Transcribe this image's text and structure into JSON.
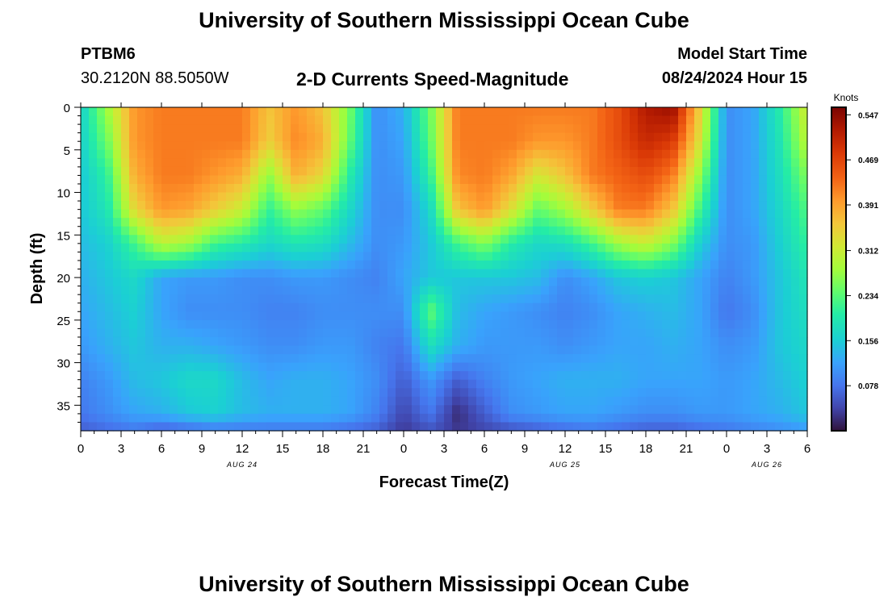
{
  "header": {
    "title": "University of Southern Mississippi Ocean Cube",
    "station_id": "PTBM6",
    "coordinates": "30.2120N  88.5050W",
    "subtitle": "2-D Currents Speed-Magnitude",
    "model_start_label": "Model Start Time",
    "model_start_value": "08/24/2024 Hour 15"
  },
  "footer": {
    "title": "University of Southern Mississippi Ocean Cube"
  },
  "chart_data": {
    "type": "heatmap",
    "title": "2-D Currents Speed-Magnitude",
    "xlabel": "Forecast Time(Z)",
    "ylabel": "Depth (ft)",
    "x_ticks": [
      "0",
      "3",
      "6",
      "9",
      "12",
      "15",
      "18",
      "21",
      "0",
      "3",
      "6",
      "9",
      "12",
      "15",
      "18",
      "21",
      "0",
      "3",
      "6"
    ],
    "x_range_hours": [
      0,
      54
    ],
    "date_labels": [
      {
        "label": "AUG 24",
        "hour": 12
      },
      {
        "label": "AUG 25",
        "hour": 36
      },
      {
        "label": "AUG 26",
        "hour": 51
      }
    ],
    "y_ticks": [
      "0",
      "5",
      "10",
      "15",
      "20",
      "25",
      "30",
      "35"
    ],
    "y_range_ft": [
      0,
      38
    ],
    "y_inverted": true,
    "colorbar": {
      "label": "Knots",
      "ticks": [
        "0.547",
        "0.469",
        "0.391",
        "0.312",
        "0.234",
        "0.156",
        "0.078"
      ],
      "range": [
        0.0,
        0.56
      ]
    },
    "depths_ft": [
      0,
      4,
      8,
      12,
      16,
      20,
      24,
      28,
      32,
      36,
      38
    ],
    "hours": [
      0,
      2,
      4,
      6,
      8,
      10,
      12,
      14,
      16,
      18,
      20,
      22,
      24,
      26,
      28,
      30,
      32,
      34,
      36,
      38,
      40,
      42,
      44,
      46,
      48,
      50,
      52,
      54
    ],
    "speed_knots": [
      [
        0.16,
        0.28,
        0.4,
        0.42,
        0.42,
        0.42,
        0.42,
        0.36,
        0.4,
        0.36,
        0.25,
        0.1,
        0.13,
        0.25,
        0.42,
        0.42,
        0.42,
        0.42,
        0.42,
        0.42,
        0.46,
        0.52,
        0.54,
        0.35,
        0.1,
        0.12,
        0.2,
        0.32
      ],
      [
        0.16,
        0.25,
        0.4,
        0.42,
        0.42,
        0.42,
        0.42,
        0.35,
        0.41,
        0.38,
        0.24,
        0.1,
        0.12,
        0.24,
        0.42,
        0.42,
        0.42,
        0.4,
        0.4,
        0.42,
        0.46,
        0.5,
        0.48,
        0.33,
        0.1,
        0.12,
        0.19,
        0.3
      ],
      [
        0.15,
        0.21,
        0.38,
        0.42,
        0.42,
        0.4,
        0.38,
        0.27,
        0.38,
        0.34,
        0.2,
        0.1,
        0.11,
        0.21,
        0.41,
        0.42,
        0.39,
        0.32,
        0.36,
        0.42,
        0.44,
        0.46,
        0.42,
        0.27,
        0.1,
        0.12,
        0.18,
        0.26
      ],
      [
        0.15,
        0.19,
        0.34,
        0.4,
        0.39,
        0.35,
        0.31,
        0.21,
        0.27,
        0.24,
        0.17,
        0.1,
        0.1,
        0.17,
        0.36,
        0.4,
        0.33,
        0.24,
        0.28,
        0.35,
        0.42,
        0.42,
        0.36,
        0.22,
        0.1,
        0.12,
        0.17,
        0.23
      ],
      [
        0.14,
        0.16,
        0.22,
        0.3,
        0.28,
        0.22,
        0.2,
        0.17,
        0.19,
        0.18,
        0.14,
        0.1,
        0.11,
        0.15,
        0.22,
        0.26,
        0.2,
        0.17,
        0.18,
        0.22,
        0.28,
        0.31,
        0.26,
        0.16,
        0.1,
        0.11,
        0.16,
        0.21
      ],
      [
        0.13,
        0.15,
        0.17,
        0.12,
        0.11,
        0.11,
        0.1,
        0.1,
        0.11,
        0.11,
        0.1,
        0.09,
        0.12,
        0.15,
        0.15,
        0.15,
        0.15,
        0.14,
        0.1,
        0.12,
        0.15,
        0.16,
        0.15,
        0.12,
        0.09,
        0.11,
        0.15,
        0.19
      ],
      [
        0.12,
        0.14,
        0.16,
        0.12,
        0.1,
        0.1,
        0.1,
        0.09,
        0.09,
        0.1,
        0.1,
        0.1,
        0.1,
        0.24,
        0.14,
        0.12,
        0.11,
        0.1,
        0.09,
        0.1,
        0.12,
        0.13,
        0.14,
        0.12,
        0.08,
        0.1,
        0.15,
        0.18
      ],
      [
        0.11,
        0.13,
        0.15,
        0.13,
        0.13,
        0.12,
        0.11,
        0.1,
        0.1,
        0.11,
        0.11,
        0.09,
        0.08,
        0.18,
        0.13,
        0.11,
        0.11,
        0.11,
        0.1,
        0.11,
        0.12,
        0.12,
        0.13,
        0.12,
        0.1,
        0.11,
        0.15,
        0.17
      ],
      [
        0.09,
        0.11,
        0.14,
        0.15,
        0.17,
        0.17,
        0.14,
        0.12,
        0.13,
        0.13,
        0.12,
        0.1,
        0.06,
        0.11,
        0.06,
        0.09,
        0.11,
        0.12,
        0.13,
        0.13,
        0.13,
        0.12,
        0.12,
        0.12,
        0.11,
        0.12,
        0.14,
        0.16
      ],
      [
        0.08,
        0.1,
        0.12,
        0.13,
        0.15,
        0.16,
        0.14,
        0.13,
        0.13,
        0.13,
        0.12,
        0.09,
        0.04,
        0.08,
        0.02,
        0.06,
        0.1,
        0.11,
        0.12,
        0.12,
        0.11,
        0.1,
        0.1,
        0.11,
        0.11,
        0.12,
        0.13,
        0.15
      ],
      [
        0.06,
        0.07,
        0.08,
        0.06,
        0.07,
        0.08,
        0.08,
        0.08,
        0.08,
        0.08,
        0.07,
        0.06,
        0.03,
        0.05,
        0.03,
        0.04,
        0.05,
        0.06,
        0.07,
        0.08,
        0.07,
        0.06,
        0.06,
        0.07,
        0.08,
        0.09,
        0.1,
        0.11
      ]
    ],
    "grid": false
  }
}
